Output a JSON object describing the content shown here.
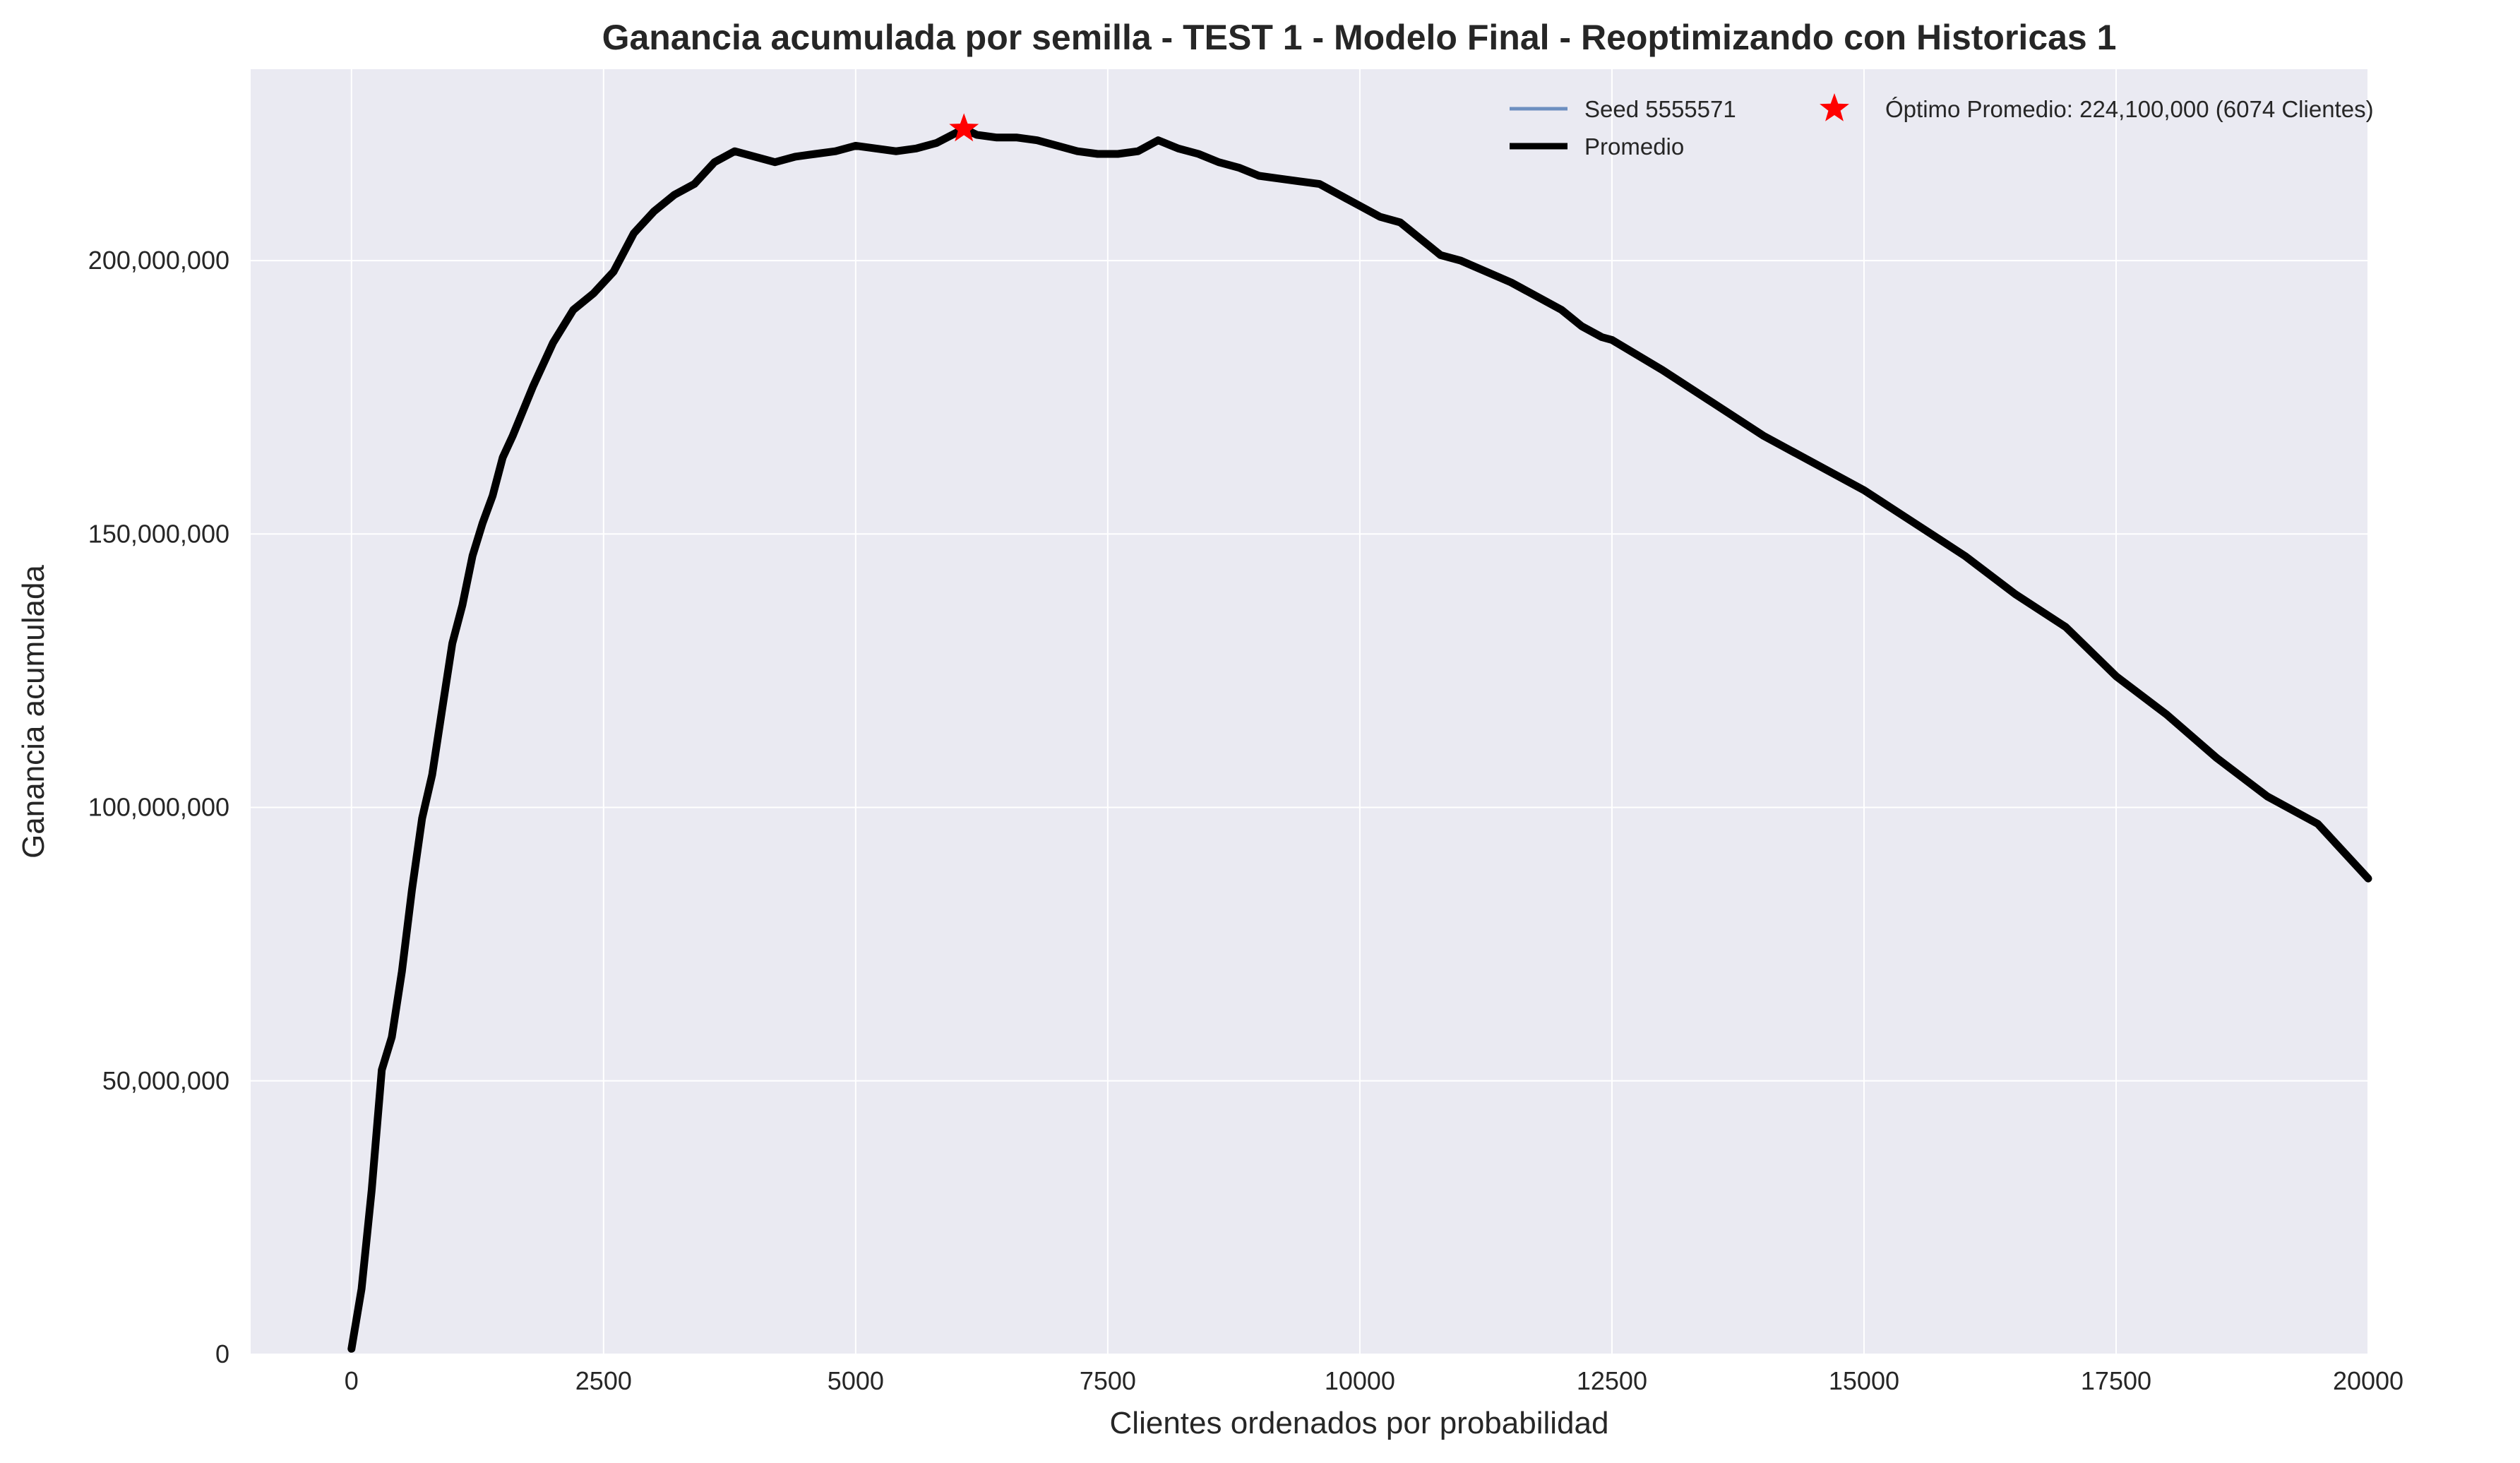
{
  "chart_data": {
    "type": "line",
    "title": "Ganancia acumulada por semilla - TEST 1 - Modelo Final  - Reoptimizando con Historicas 1",
    "xlabel": "Clientes ordenados por probabilidad",
    "ylabel": "Ganancia acumulada",
    "xlim": [
      -1000,
      20000
    ],
    "ylim": [
      0,
      235000000
    ],
    "x_ticks": [
      0,
      2500,
      5000,
      7500,
      10000,
      12500,
      15000,
      17500,
      20000
    ],
    "x_tick_labels": [
      "0",
      "2500",
      "5000",
      "7500",
      "10000",
      "12500",
      "15000",
      "17500",
      "20000"
    ],
    "y_ticks": [
      0,
      50000000,
      100000000,
      150000000,
      200000000
    ],
    "y_tick_labels": [
      "0",
      "50,000,000",
      "100,000,000",
      "150,000,000",
      "200,000,000"
    ],
    "grid": true,
    "legend_position": "top-right",
    "colors": {
      "background": "#eaeaf2",
      "grid": "#ffffff",
      "seed": "#6d8fc0",
      "average": "#000000",
      "optimum": "#ff0000"
    },
    "series": [
      {
        "name": "Seed 5555571",
        "color": "#6d8fc0",
        "x": [
          0,
          100,
          200,
          300,
          400,
          500,
          600,
          700,
          800,
          900,
          1000,
          1100,
          1200,
          1300,
          1400,
          1500,
          1600,
          1800,
          2000,
          2200,
          2400,
          2600,
          2800,
          3000,
          3200,
          3400,
          3600,
          3800,
          4000,
          4200,
          4400,
          4600,
          4800,
          5000,
          5200,
          5400,
          5600,
          5800,
          6074,
          6200,
          6400,
          6600,
          6800,
          7000,
          7200,
          7400,
          7600,
          7800,
          8000,
          8200,
          8400,
          8600,
          8800,
          9000,
          9200,
          9400,
          9600,
          9800,
          10000,
          10200,
          10400,
          10600,
          10800,
          11000,
          11500,
          12000,
          12200,
          12400,
          12500,
          13000,
          13500,
          14000,
          14500,
          15000,
          15500,
          16000,
          16500,
          17000,
          17500,
          18000,
          18500,
          19000,
          19500,
          20000
        ],
        "values": [
          1000000,
          12000000,
          30000000,
          52000000,
          58000000,
          70000000,
          85000000,
          98000000,
          106000000,
          118000000,
          130000000,
          137000000,
          146000000,
          152000000,
          157000000,
          164000000,
          168000000,
          177000000,
          185000000,
          191000000,
          194000000,
          198000000,
          205000000,
          209000000,
          212000000,
          214000000,
          218000000,
          220000000,
          219000000,
          218000000,
          219000000,
          219500000,
          220000000,
          221000000,
          220500000,
          220000000,
          220500000,
          221500000,
          224100000,
          223000000,
          222500000,
          222500000,
          222000000,
          221000000,
          220000000,
          219500000,
          219500000,
          220000000,
          222000000,
          220500000,
          219500000,
          218000000,
          217000000,
          215500000,
          215000000,
          214500000,
          214000000,
          212000000,
          210000000,
          208000000,
          207000000,
          204000000,
          201000000,
          200000000,
          196000000,
          191000000,
          188000000,
          186000000,
          185500000,
          180000000,
          174000000,
          168000000,
          163000000,
          158000000,
          152000000,
          146000000,
          139000000,
          133000000,
          124000000,
          117000000,
          109000000,
          102000000,
          97000000,
          87000000
        ]
      },
      {
        "name": "Promedio",
        "color": "#000000",
        "x": [
          0,
          100,
          200,
          300,
          400,
          500,
          600,
          700,
          800,
          900,
          1000,
          1100,
          1200,
          1300,
          1400,
          1500,
          1600,
          1800,
          2000,
          2200,
          2400,
          2600,
          2800,
          3000,
          3200,
          3400,
          3600,
          3800,
          4000,
          4200,
          4400,
          4600,
          4800,
          5000,
          5200,
          5400,
          5600,
          5800,
          6074,
          6200,
          6400,
          6600,
          6800,
          7000,
          7200,
          7400,
          7600,
          7800,
          8000,
          8200,
          8400,
          8600,
          8800,
          9000,
          9200,
          9400,
          9600,
          9800,
          10000,
          10200,
          10400,
          10600,
          10800,
          11000,
          11500,
          12000,
          12200,
          12400,
          12500,
          13000,
          13500,
          14000,
          14500,
          15000,
          15500,
          16000,
          16500,
          17000,
          17500,
          18000,
          18500,
          19000,
          19500,
          20000
        ],
        "values": [
          1000000,
          12000000,
          30000000,
          52000000,
          58000000,
          70000000,
          85000000,
          98000000,
          106000000,
          118000000,
          130000000,
          137000000,
          146000000,
          152000000,
          157000000,
          164000000,
          168000000,
          177000000,
          185000000,
          191000000,
          194000000,
          198000000,
          205000000,
          209000000,
          212000000,
          214000000,
          218000000,
          220000000,
          219000000,
          218000000,
          219000000,
          219500000,
          220000000,
          221000000,
          220500000,
          220000000,
          220500000,
          221500000,
          224100000,
          223000000,
          222500000,
          222500000,
          222000000,
          221000000,
          220000000,
          219500000,
          219500000,
          220000000,
          222000000,
          220500000,
          219500000,
          218000000,
          217000000,
          215500000,
          215000000,
          214500000,
          214000000,
          212000000,
          210000000,
          208000000,
          207000000,
          204000000,
          201000000,
          200000000,
          196000000,
          191000000,
          188000000,
          186000000,
          185500000,
          180000000,
          174000000,
          168000000,
          163000000,
          158000000,
          152000000,
          146000000,
          139000000,
          133000000,
          124000000,
          117000000,
          109000000,
          102000000,
          97000000,
          87000000
        ]
      }
    ],
    "optimum": {
      "label": "Óptimo Promedio: 224,100,000 (6074 Clientes)",
      "x": 6074,
      "y": 224100000,
      "marker": "star-icon"
    }
  }
}
